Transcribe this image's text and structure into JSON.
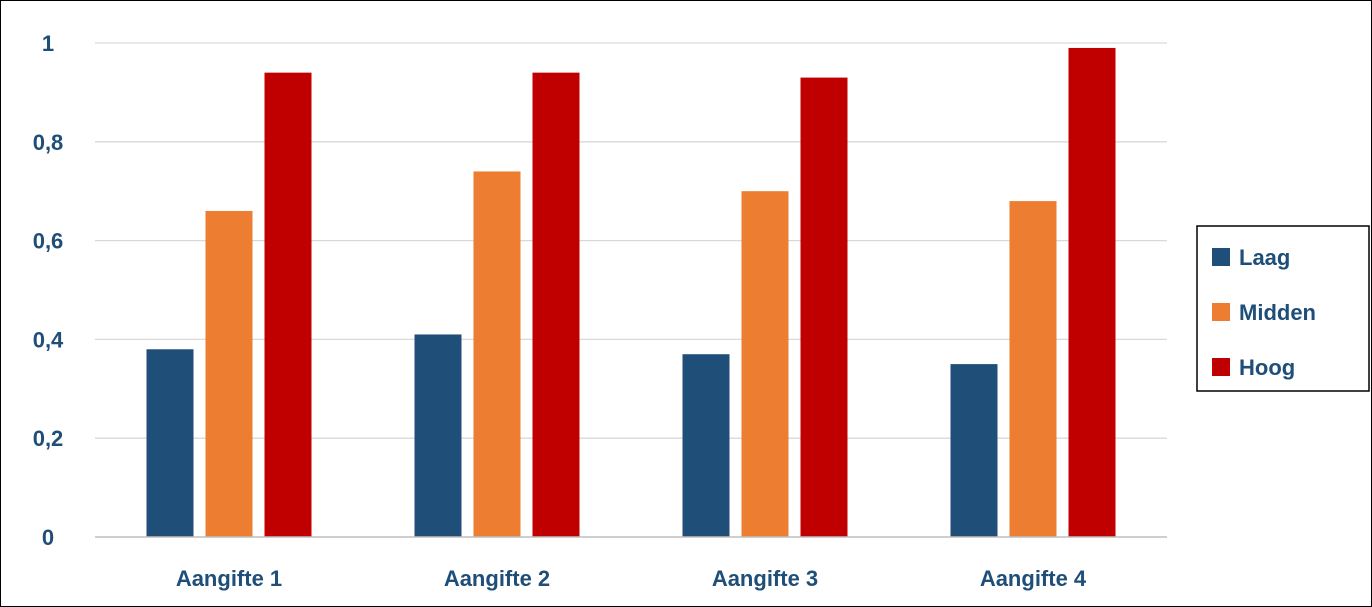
{
  "colors": {
    "text": "#1F4E79",
    "grid": "#D9D9D9",
    "axis": "#BFBFBF",
    "border": "#000000"
  },
  "chart_data": {
    "type": "bar",
    "title": "",
    "xlabel": "",
    "ylabel": "",
    "categories": [
      "Aangifte 1",
      "Aangifte 2",
      "Aangifte 3",
      "Aangifte 4"
    ],
    "series": [
      {
        "name": "Laag",
        "color": "#1F4E79",
        "values": [
          0.38,
          0.41,
          0.37,
          0.35
        ]
      },
      {
        "name": "Midden",
        "color": "#ED7D31",
        "values": [
          0.66,
          0.74,
          0.7,
          0.68
        ]
      },
      {
        "name": "Hoog",
        "color": "#C00000",
        "values": [
          0.94,
          0.94,
          0.93,
          0.99
        ]
      }
    ],
    "ylim": [
      0,
      1
    ],
    "yticks": [
      0,
      0.2,
      0.4,
      0.6,
      0.8,
      1
    ],
    "ytick_labels": [
      "0",
      "0,2",
      "0,4",
      "0,6",
      "0,8",
      "1"
    ],
    "grid": true,
    "legend_position": "right"
  }
}
